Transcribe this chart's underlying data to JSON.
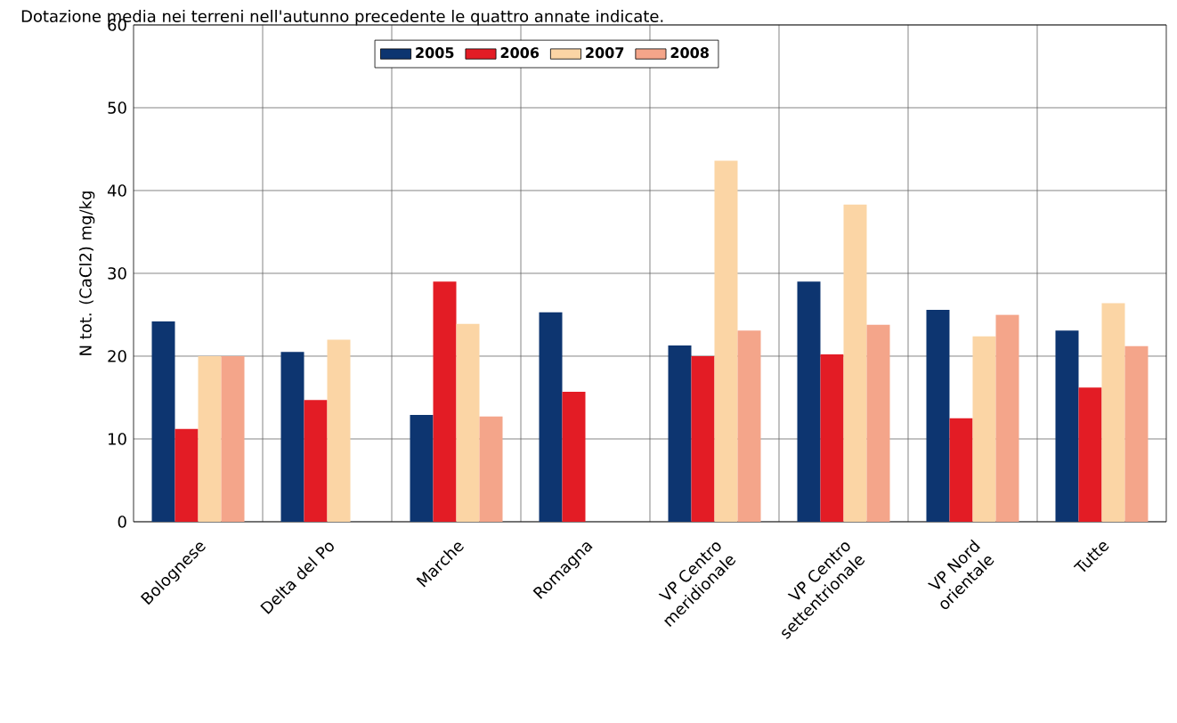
{
  "chart_data": {
    "type": "bar",
    "title": "Dotazione media nei terreni nell'autunno precedente le quattro annate indicate.",
    "ylabel": "N tot. (CaCl2) mg/kg",
    "categories": [
      "Bolognese",
      "Delta del Po",
      "Marche",
      "Romagna",
      "VP Centro meridionale",
      "VP Centro settentrionale",
      "VP Nord orientale",
      "Tutte"
    ],
    "series": [
      {
        "name": "2005",
        "color": "#0d3570",
        "values": [
          24.2,
          20.5,
          12.9,
          25.3,
          21.3,
          29,
          25.6,
          23.1
        ]
      },
      {
        "name": "2006",
        "color": "#e31c25",
        "values": [
          11.2,
          14.7,
          29,
          15.7,
          20,
          20.2,
          12.5,
          16.2
        ]
      },
      {
        "name": "2007",
        "color": "#fbd5a5",
        "values": [
          20,
          22,
          23.9,
          null,
          43.6,
          38.3,
          22.4,
          26.4
        ]
      },
      {
        "name": "2008",
        "color": "#f4a58a",
        "values": [
          20,
          null,
          12.7,
          null,
          23.1,
          23.8,
          25,
          21.2
        ]
      }
    ],
    "ylim": [
      0,
      60
    ],
    "yticks": [
      0,
      10,
      20,
      30,
      40,
      50,
      60
    ],
    "grid": true,
    "legend": "top"
  }
}
